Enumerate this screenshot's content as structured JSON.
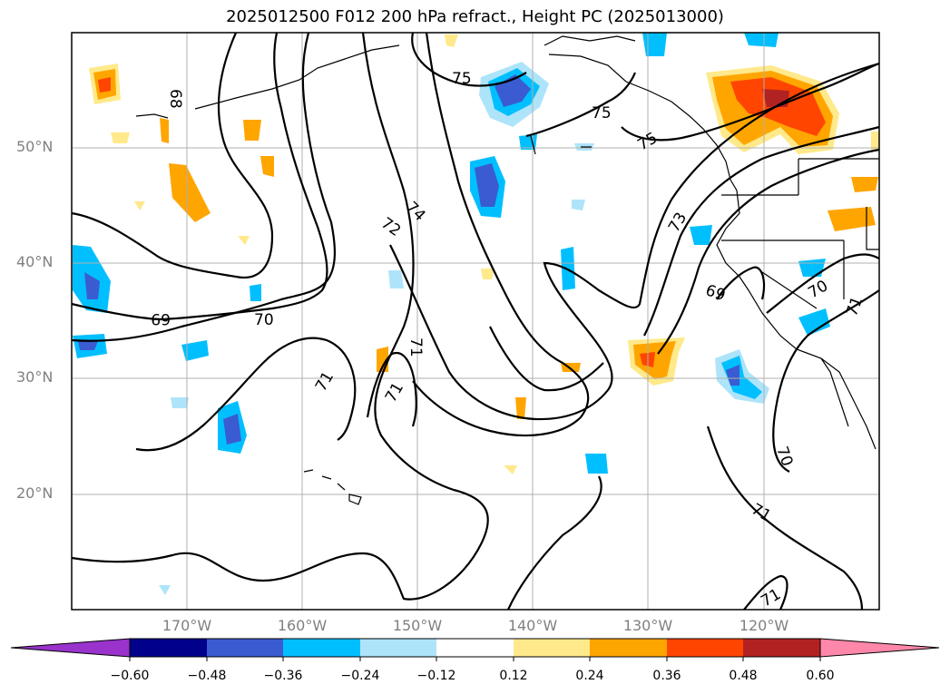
{
  "title": "2025012500 F012 200 hPa refract., Height PC (2025013000)",
  "lat_labels": [
    "50°N",
    "40°N",
    "30°N",
    "20°N"
  ],
  "lon_labels": [
    "170°W",
    "160°W",
    "150°W",
    "140°W",
    "130°W",
    "120°W"
  ],
  "contour_labels": [
    "68",
    "75",
    "75",
    "75",
    "74",
    "72",
    "73",
    "69",
    "70",
    "70",
    "71",
    "71",
    "71",
    "71",
    "71",
    "70",
    "71",
    "69",
    "71"
  ],
  "colorbar": {
    "ticks": [
      "−0.60",
      "−0.48",
      "−0.36",
      "−0.24",
      "−0.12",
      "0.12",
      "0.24",
      "0.36",
      "0.48",
      "0.60"
    ],
    "colors": [
      "#9933cc",
      "#00008b",
      "#3a5bd1",
      "#00bfff",
      "#aee4fa",
      "#ffffff",
      "#ffe98a",
      "#ffa500",
      "#ff4500",
      "#b22222",
      "#ff88aa"
    ]
  },
  "colors": {
    "contour": "#000000",
    "grid": "#b0b0b0",
    "axis_label": "#808080"
  }
}
